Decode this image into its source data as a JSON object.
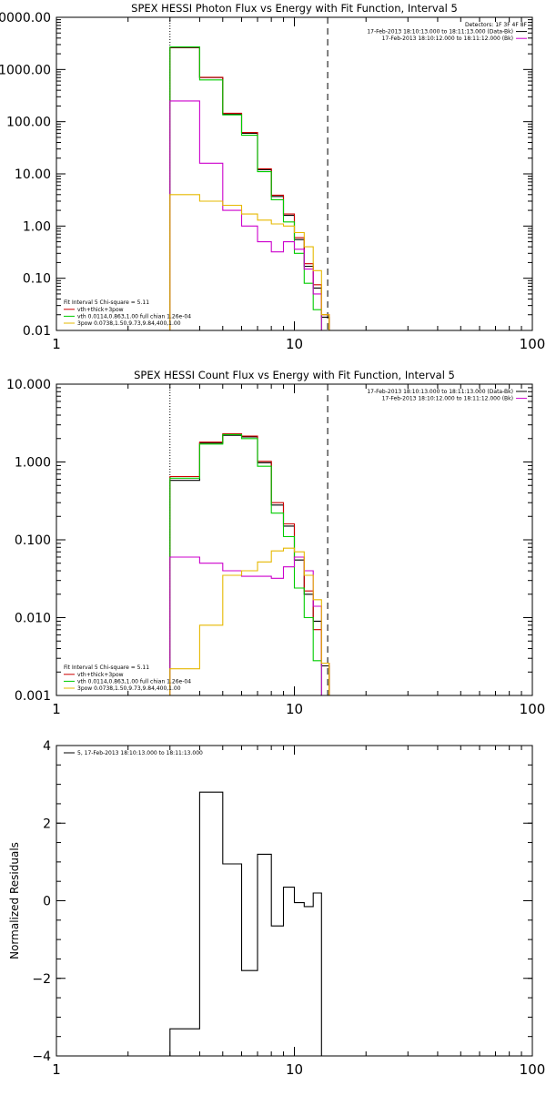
{
  "chart_data": [
    {
      "type": "line",
      "title": "SPEX HESSI Photon Flux vs Energy with Fit Function, Interval 5",
      "xlabel": "",
      "ylabel": "",
      "xscale": "log",
      "yscale": "log",
      "xlim": [
        1,
        100
      ],
      "ylim": [
        0.01,
        10000
      ],
      "xticks": [
        {
          "v": 1,
          "label": "1"
        },
        {
          "v": 10,
          "label": "10"
        },
        {
          "v": 100,
          "label": "100"
        }
      ],
      "yticks": [
        {
          "v": 0.01,
          "label": "0.01"
        },
        {
          "v": 0.1,
          "label": "0.10"
        },
        {
          "v": 1,
          "label": "1.00"
        },
        {
          "v": 10,
          "label": "10.00"
        },
        {
          "v": 100,
          "label": "100.00"
        },
        {
          "v": 1000,
          "label": "1000.00"
        },
        {
          "v": 10000,
          "label": "10000.00"
        }
      ],
      "vlines": [
        {
          "x": 3.0,
          "style": "dotted"
        },
        {
          "x": 13.8,
          "style": "dashed"
        }
      ],
      "bin_edges": [
        3.0,
        4.0,
        5.0,
        6.0,
        7.0,
        8.0,
        9.0,
        10.0,
        11.0,
        12.0,
        13.0,
        14.0,
        15.0
      ],
      "legend_top": {
        "placement": "top-right",
        "lines": [
          {
            "text": "Detectors: 1F 3F 4F 8F",
            "color": ""
          },
          {
            "text": "17-Feb-2013 18:10:13.000 to 18:11:13.000 (Data-Bk)",
            "color": "#000000"
          },
          {
            "text": "17-Feb-2013 18:10:12.000 to 18:11:12.000 (Bk)",
            "color": "#cc00cc"
          }
        ]
      },
      "legend_bottom": {
        "placement": "bottom-left",
        "lines": [
          {
            "text": "Fit Interval  5    Chi-square = 5.11",
            "color": ""
          },
          {
            "text": "vth+thick+3pow",
            "color": "#cc0000"
          },
          {
            "text": "vth 0.0114,0.863,1.00   full chian 1.26e-04",
            "color": "#00cc00"
          },
          {
            "text": "3pow 0.0738,1.50,9.73,9.84,400,1.00",
            "color": "#e6b800"
          }
        ]
      },
      "series": [
        {
          "color": "#000000",
          "values": [
            2600,
            700,
            140,
            60,
            12,
            3.7,
            1.6,
            0.55,
            0.17,
            0.065,
            0.018,
            null
          ]
        },
        {
          "color": "#cc0000",
          "values": [
            2650,
            710,
            145,
            62,
            12.5,
            3.9,
            1.7,
            0.6,
            0.19,
            0.075,
            0.02,
            null
          ]
        },
        {
          "color": "#00cc00",
          "values": [
            2700,
            630,
            135,
            55,
            11,
            3.2,
            1.2,
            0.3,
            0.08,
            0.025,
            0.008,
            null
          ]
        },
        {
          "color": "#cc00cc",
          "values": [
            250,
            16,
            2.0,
            1.0,
            0.5,
            0.32,
            0.5,
            0.36,
            0.15,
            0.05,
            null,
            null
          ]
        },
        {
          "color": "#e6b800",
          "values": [
            4.0,
            3.0,
            2.5,
            1.7,
            1.3,
            1.1,
            1.0,
            0.75,
            0.4,
            0.14,
            0.02,
            null
          ]
        }
      ]
    },
    {
      "type": "line",
      "title": "SPEX HESSI Count Flux vs Energy with Fit Function, Interval 5",
      "xlabel": "",
      "ylabel": "",
      "xscale": "log",
      "yscale": "log",
      "xlim": [
        1,
        100
      ],
      "ylim": [
        0.001,
        10
      ],
      "xticks": [
        {
          "v": 1,
          "label": "1"
        },
        {
          "v": 10,
          "label": "10"
        },
        {
          "v": 100,
          "label": "100"
        }
      ],
      "yticks": [
        {
          "v": 0.001,
          "label": "0.001"
        },
        {
          "v": 0.01,
          "label": "0.010"
        },
        {
          "v": 0.1,
          "label": "0.100"
        },
        {
          "v": 1,
          "label": "1.000"
        },
        {
          "v": 10,
          "label": "10.000"
        }
      ],
      "vlines": [
        {
          "x": 3.0,
          "style": "dotted"
        },
        {
          "x": 13.8,
          "style": "dashed"
        }
      ],
      "bin_edges": [
        3.0,
        4.0,
        5.0,
        6.0,
        7.0,
        8.0,
        9.0,
        10.0,
        11.0,
        12.0,
        13.0,
        14.0,
        15.0
      ],
      "legend_top": {
        "placement": "top-right",
        "lines": [
          {
            "text": "17-Feb-2013 18:10:13.000 to 18:11:13.000 (Data-Bk)",
            "color": "#000000"
          },
          {
            "text": "17-Feb-2013 18:10:12.000 to 18:11:12.000 (Bk)",
            "color": "#cc00cc"
          }
        ]
      },
      "legend_bottom": {
        "placement": "bottom-left",
        "lines": [
          {
            "text": "Fit Interval  5    Chi-square = 5.11",
            "color": ""
          },
          {
            "text": "vth+thick+3pow",
            "color": "#cc0000"
          },
          {
            "text": "vth 0.0114,0.863,1.00   full chian 1.26e-04",
            "color": "#00cc00"
          },
          {
            "text": "3pow 0.0738,1.50,9.73,9.84,400,1.00",
            "color": "#e6b800"
          }
        ]
      },
      "series": [
        {
          "color": "#000000",
          "values": [
            0.58,
            1.75,
            2.2,
            2.1,
            0.98,
            0.28,
            0.15,
            0.055,
            0.02,
            0.009,
            0.0024,
            null
          ]
        },
        {
          "color": "#cc0000",
          "values": [
            0.65,
            1.8,
            2.3,
            2.15,
            1.02,
            0.3,
            0.16,
            0.06,
            0.022,
            0.007,
            0.0026,
            null
          ]
        },
        {
          "color": "#00cc00",
          "values": [
            0.62,
            1.7,
            2.25,
            2.0,
            0.88,
            0.22,
            0.11,
            0.024,
            0.01,
            0.0028,
            0.0008,
            null
          ]
        },
        {
          "color": "#cc00cc",
          "values": [
            0.06,
            0.05,
            0.04,
            0.034,
            0.034,
            0.032,
            0.045,
            0.06,
            0.04,
            0.014,
            null,
            null
          ]
        },
        {
          "color": "#e6b800",
          "values": [
            0.0022,
            0.008,
            0.035,
            0.04,
            0.052,
            0.072,
            0.078,
            0.07,
            0.035,
            0.017,
            0.0026,
            0.0008
          ]
        }
      ]
    },
    {
      "type": "line",
      "title": "",
      "xlabel": "",
      "ylabel": "Normalized Residuals",
      "xscale": "log",
      "yscale": "linear",
      "xlim": [
        1,
        100
      ],
      "ylim": [
        -4,
        4
      ],
      "xticks": [
        {
          "v": 1,
          "label": "1"
        },
        {
          "v": 10,
          "label": "10"
        },
        {
          "v": 100,
          "label": "100"
        }
      ],
      "yticks": [
        {
          "v": -4,
          "label": "−4"
        },
        {
          "v": -2,
          "label": "−2"
        },
        {
          "v": 0,
          "label": "0"
        },
        {
          "v": 2,
          "label": "2"
        },
        {
          "v": 4,
          "label": "4"
        }
      ],
      "bin_edges": [
        3.0,
        4.0,
        5.0,
        6.0,
        7.0,
        8.0,
        9.0,
        10.0,
        11.0,
        12.0,
        13.0,
        14.0
      ],
      "legend_top": {
        "placement": "top-left",
        "lines": [
          {
            "text": "5, 17-Feb-2013 18:10:13.000 to 18:11:13.000",
            "color": "#000000"
          }
        ]
      },
      "series": [
        {
          "color": "#000000",
          "values": [
            -3.3,
            2.8,
            0.95,
            -1.8,
            1.2,
            -0.65,
            0.35,
            -0.05,
            -0.15,
            0.2,
            -4.0
          ]
        }
      ]
    }
  ]
}
